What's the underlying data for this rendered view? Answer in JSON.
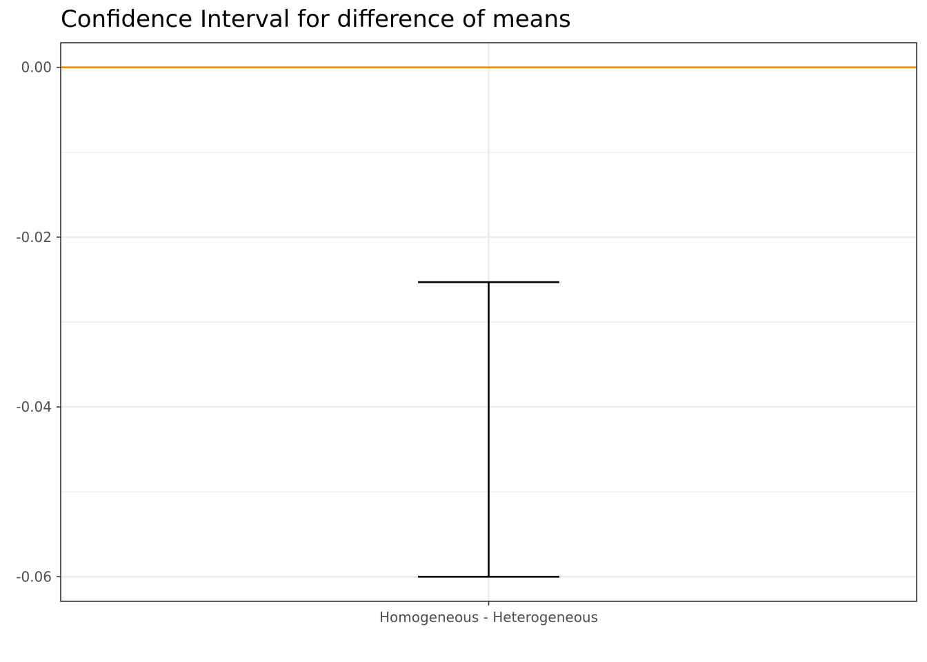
{
  "chart_data": {
    "type": "errorbar",
    "title": "Confidence Interval for difference of means",
    "xlabel": "",
    "ylabel": "",
    "categories": [
      "Homogeneous - Heterogeneous"
    ],
    "intervals": [
      {
        "category": "Homogeneous - Heterogeneous",
        "lower": -0.06,
        "upper": -0.0253
      }
    ],
    "reference_line": {
      "y": 0,
      "color": "#f28e00"
    },
    "ylim": [
      -0.0629,
      0.0029
    ],
    "yticks": [
      0,
      -0.02,
      -0.04,
      -0.06
    ],
    "ytick_labels": [
      "0.00",
      "-0.02",
      "-0.04",
      "-0.06"
    ],
    "y_minor_ticks": [
      -0.01,
      -0.03,
      -0.05
    ],
    "grid": true,
    "legend": "none",
    "colors": {
      "interval": "#000000",
      "grid": "#ebebeb",
      "panel_border": "#333333"
    }
  }
}
